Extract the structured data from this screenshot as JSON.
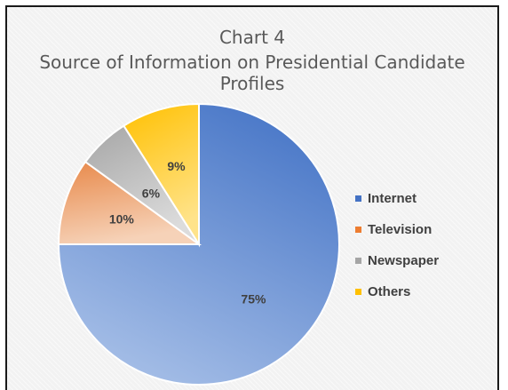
{
  "chart_data": {
    "type": "pie",
    "title": "Chart 4",
    "subtitle": "Source of Information on Presidential Candidate Profiles",
    "categories": [
      "Internet",
      "Television",
      "Newspaper",
      "Others"
    ],
    "values": [
      75,
      10,
      6,
      9
    ],
    "data_labels": [
      "75%",
      "10%",
      "6%",
      "9%"
    ],
    "colors": [
      "#4472c4",
      "#ed7d31",
      "#a5a5a5",
      "#ffc000"
    ],
    "legend_placement": "right"
  }
}
